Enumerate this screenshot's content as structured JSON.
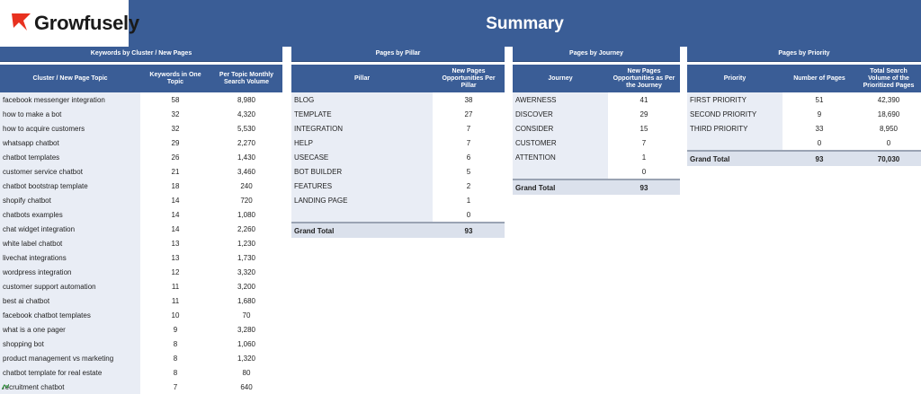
{
  "header": {
    "logo_text": "Growfusely",
    "title": "Summary",
    "brand_color": "#3a5d96",
    "logo_accent": "#e8311f"
  },
  "keywords_panel": {
    "title": "Keywords by Cluster / New Pages",
    "columns": [
      "Cluster / New Page Topic",
      "Keywords in One Topic",
      "Per Topic Monthly Search Volume"
    ],
    "rows": [
      [
        "facebook messenger integration",
        "58",
        "8,980"
      ],
      [
        "how to make a bot",
        "32",
        "4,320"
      ],
      [
        "how to acquire customers",
        "32",
        "5,530"
      ],
      [
        "whatsapp chatbot",
        "29",
        "2,270"
      ],
      [
        "chatbot templates",
        "26",
        "1,430"
      ],
      [
        "customer service chatbot",
        "21",
        "3,460"
      ],
      [
        "chatbot bootstrap template",
        "18",
        "240"
      ],
      [
        "shopify chatbot",
        "14",
        "720"
      ],
      [
        "chatbots examples",
        "14",
        "1,080"
      ],
      [
        "chat widget integration",
        "14",
        "2,260"
      ],
      [
        "white label chatbot",
        "13",
        "1,230"
      ],
      [
        "livechat integrations",
        "13",
        "1,730"
      ],
      [
        "wordpress integration",
        "12",
        "3,320"
      ],
      [
        "customer support automation",
        "11",
        "3,200"
      ],
      [
        "best ai chatbot",
        "11",
        "1,680"
      ],
      [
        "facebook chatbot templates",
        "10",
        "70"
      ],
      [
        "what is a one pager",
        "9",
        "3,280"
      ],
      [
        "shopping bot",
        "8",
        "1,060"
      ],
      [
        "product management vs marketing",
        "8",
        "1,320"
      ],
      [
        "chatbot template for real estate",
        "8",
        "80"
      ],
      [
        "recruitment chatbot",
        "7",
        "640"
      ]
    ]
  },
  "pillar_panel": {
    "title": "Pages by Pillar",
    "columns": [
      "Pillar",
      "New Pages Opportunities Per Pillar"
    ],
    "rows": [
      [
        "BLOG",
        "38"
      ],
      [
        "TEMPLATE",
        "27"
      ],
      [
        "INTEGRATION",
        "7"
      ],
      [
        "HELP",
        "7"
      ],
      [
        "USECASE",
        "6"
      ],
      [
        "BOT BUILDER",
        "5"
      ],
      [
        "FEATURES",
        "2"
      ],
      [
        "LANDING PAGE",
        "1"
      ],
      [
        "",
        "0"
      ]
    ],
    "total": [
      "Grand Total",
      "93"
    ]
  },
  "journey_panel": {
    "title": "Pages by Journey",
    "columns": [
      "Journey",
      "New Pages Opportunities as Per the Journey"
    ],
    "rows": [
      [
        "AWERNESS",
        "41"
      ],
      [
        "DISCOVER",
        "29"
      ],
      [
        "CONSIDER",
        "15"
      ],
      [
        "CUSTOMER",
        "7"
      ],
      [
        "ATTENTION",
        "1"
      ],
      [
        "",
        "0"
      ]
    ],
    "total": [
      "Grand Total",
      "93"
    ]
  },
  "priority_panel": {
    "title": "Pages by Priority",
    "columns": [
      "Priority",
      "Number of Pages",
      "Total Search Volume of the Prioritized Pages"
    ],
    "rows": [
      [
        "FIRST PRIORITY",
        "51",
        "42,390"
      ],
      [
        "SECOND PRIORITY",
        "9",
        "18,690"
      ],
      [
        "THIRD PRIORITY",
        "33",
        "8,950"
      ],
      [
        "",
        "0",
        "0"
      ]
    ],
    "total": [
      "Grand Total",
      "93",
      "70,030"
    ]
  }
}
